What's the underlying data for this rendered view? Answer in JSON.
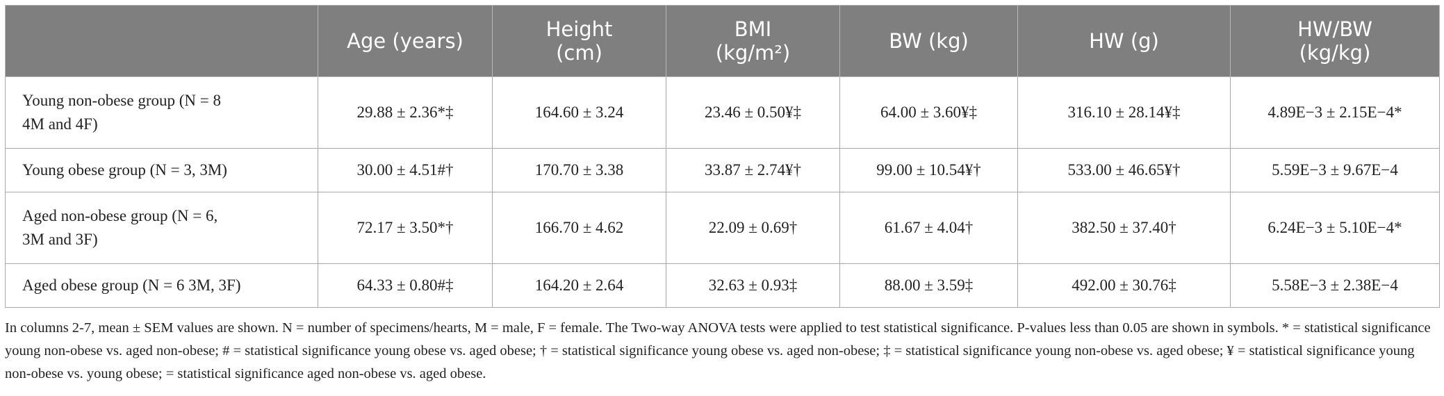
{
  "table": {
    "columns": [
      "Age (years)",
      "Height\n(cm)",
      "BMI\n(kg/m²)",
      "BW (kg)",
      "HW (g)",
      "HW/BW\n(kg/kg)"
    ],
    "rows": [
      [
        "Young non-obese group (N = 8\n4M and 4F)",
        "29.88 ± 2.36*‡",
        "164.60 ± 3.24",
        "23.46 ± 0.50¥‡",
        "64.00 ± 3.60¥‡",
        "316.10 ± 28.14¥‡",
        "4.89E−3 ± 2.15E−4*"
      ],
      [
        "Young obese group (N = 3, 3M)",
        "30.00 ± 4.51#†",
        "170.70 ± 3.38",
        "33.87 ± 2.74¥†",
        "99.00 ± 10.54¥†",
        "533.00 ± 46.65¥†",
        "5.59E−3 ± 9.67E−4"
      ],
      [
        "Aged non-obese group (N = 6,\n3M and 3F)",
        "72.17 ± 3.50*†",
        "166.70 ± 4.62",
        "22.09 ± 0.69†",
        "61.67 ± 4.04†",
        "382.50 ± 37.40†",
        "6.24E−3 ± 5.10E−4*"
      ],
      [
        "Aged obese group (N = 6 3M, 3F)",
        "64.33 ± 0.80#‡",
        "164.20 ± 2.64",
        "32.63 ± 0.93‡",
        "88.00 ± 3.59‡",
        "492.00 ± 30.76‡",
        "5.58E−3 ± 2.38E−4"
      ]
    ]
  },
  "footnote": "In columns 2-7, mean ± SEM values are shown. N = number of specimens/hearts, M = male, F = female. The Two-way ANOVA tests were applied to test statistical significance. P-values less than 0.05 are shown in symbols. * = statistical significance young non-obese vs. aged non-obese; # = statistical significance young obese vs. aged obese; † = statistical significance young obese vs. aged non-obese; ‡ = statistical significance young non-obese vs. aged obese; ¥ = statistical significance young non-obese vs. young obese;  = statistical significance aged non-obese vs. aged obese."
}
